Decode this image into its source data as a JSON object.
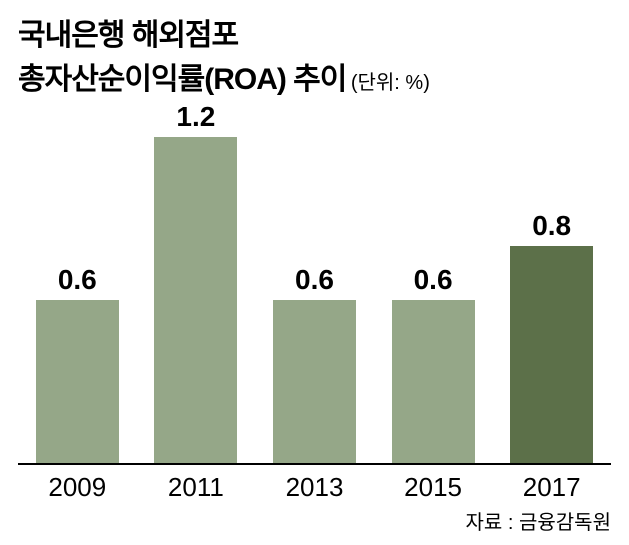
{
  "title": {
    "line1": "국내은행 해외점포",
    "line2": "총자산순이익률(ROA) 추이",
    "unit": "(단위: %)",
    "fontsize_main": 30,
    "fontsize_unit": 20
  },
  "chart": {
    "type": "bar",
    "categories": [
      "2009",
      "2011",
      "2013",
      "2015",
      "2017"
    ],
    "values": [
      0.6,
      1.2,
      0.6,
      0.6,
      0.8
    ],
    "value_labels": [
      "0.6",
      "1.2",
      "0.6",
      "0.6",
      "0.8"
    ],
    "bar_colors": [
      "#95a788",
      "#95a788",
      "#95a788",
      "#95a788",
      "#5c7049"
    ],
    "ylim_max": 1.3,
    "bar_width_pct": 70,
    "value_label_fontsize": 28,
    "x_label_fontsize": 26,
    "background_color": "#ffffff",
    "axis_color": "#000000"
  },
  "source": {
    "label": "자료 : 금융감독원",
    "fontsize": 20
  }
}
